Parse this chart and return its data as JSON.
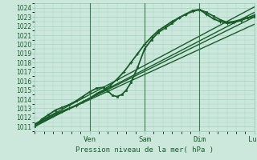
{
  "xlabel": "Pression niveau de la mer( hPa )",
  "bg_color": "#cce8dd",
  "grid_color": "#99ccbb",
  "line_color": "#1a5c2a",
  "dark_line_color": "#2a6b3a",
  "yticks": [
    1011,
    1012,
    1013,
    1014,
    1015,
    1016,
    1017,
    1018,
    1019,
    1020,
    1021,
    1022,
    1023,
    1024
  ],
  "ymin": 1010.5,
  "ymax": 1024.5,
  "xmin": 0,
  "xmax": 96,
  "xtick_positions": [
    24,
    48,
    72,
    96
  ],
  "xtick_labels": [
    "Ven",
    "Sam",
    "Dim",
    "Lun"
  ],
  "vline_positions": [
    24,
    48,
    72,
    96
  ],
  "lines": [
    {
      "x": [
        0,
        96
      ],
      "y": [
        1011.2,
        1022.2
      ],
      "lw": 1.0,
      "marker": "",
      "ms": 0
    },
    {
      "x": [
        0,
        96
      ],
      "y": [
        1011.1,
        1023.0
      ],
      "lw": 1.0,
      "marker": "",
      "ms": 0
    },
    {
      "x": [
        0,
        96
      ],
      "y": [
        1011.0,
        1023.5
      ],
      "lw": 1.0,
      "marker": "",
      "ms": 0
    },
    {
      "x": [
        0,
        96
      ],
      "y": [
        1011.3,
        1024.1
      ],
      "lw": 1.0,
      "marker": "",
      "ms": 0
    },
    {
      "x": [
        0,
        3,
        6,
        9,
        12,
        15,
        18,
        21,
        24,
        27,
        30,
        32,
        34,
        36,
        38,
        40,
        42,
        45,
        48,
        51,
        54,
        57,
        60,
        63,
        66,
        69,
        72,
        75,
        78,
        81,
        84,
        87,
        90,
        93,
        96
      ],
      "y": [
        1011.0,
        1011.8,
        1012.3,
        1012.8,
        1013.1,
        1013.4,
        1013.8,
        1014.3,
        1014.8,
        1015.2,
        1015.3,
        1014.9,
        1014.4,
        1014.3,
        1014.5,
        1015.0,
        1015.8,
        1017.5,
        1019.5,
        1020.5,
        1021.3,
        1021.8,
        1022.3,
        1022.9,
        1023.3,
        1023.7,
        1023.8,
        1023.5,
        1023.1,
        1022.7,
        1022.4,
        1022.5,
        1022.7,
        1022.9,
        1023.0
      ],
      "lw": 1.3,
      "marker": "s",
      "ms": 1.5
    },
    {
      "x": [
        0,
        3,
        6,
        9,
        12,
        15,
        18,
        21,
        24,
        27,
        30,
        33,
        36,
        39,
        42,
        45,
        48,
        51,
        54,
        57,
        60,
        63,
        66,
        69,
        72,
        75,
        78,
        81,
        84,
        87,
        90,
        93,
        96
      ],
      "y": [
        1011.1,
        1011.6,
        1012.0,
        1012.4,
        1012.7,
        1013.0,
        1013.3,
        1013.7,
        1014.1,
        1014.6,
        1015.0,
        1015.5,
        1016.2,
        1017.0,
        1018.0,
        1019.0,
        1020.0,
        1020.8,
        1021.5,
        1022.0,
        1022.5,
        1022.9,
        1023.3,
        1023.6,
        1023.8,
        1023.3,
        1022.8,
        1022.5,
        1022.3,
        1022.4,
        1022.6,
        1022.9,
        1023.2
      ],
      "lw": 1.3,
      "marker": "+",
      "ms": 3.0
    }
  ]
}
